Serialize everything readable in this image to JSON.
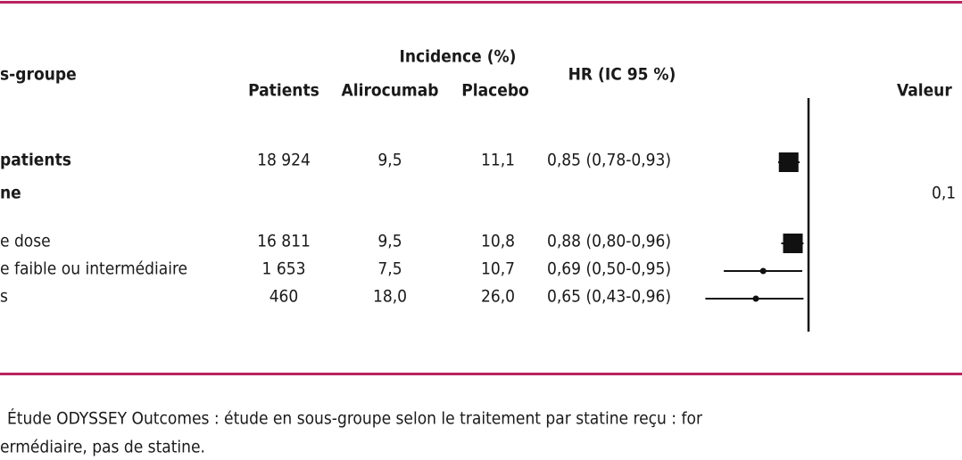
{
  "header": {
    "subgroup": "s-groupe",
    "incidence": "Incidence (%)",
    "patients": "Patients",
    "alirocumab": "Alirocumab",
    "placebo": "Placebo",
    "hr": "HR (IC 95 %)",
    "pvalue": "Valeur"
  },
  "rows": [
    {
      "label": "patients",
      "bold": true,
      "patients": "18 924",
      "alirocumab": "9,5",
      "placebo": "11,1",
      "hr_text": "0,85 (0,78-0,93)",
      "hr": 0.85,
      "low": 0.78,
      "high": 0.93,
      "marker": "square"
    },
    {
      "label": "ne",
      "bold": true,
      "pvalue": "0,1"
    },
    {
      "label": "e dose",
      "bold": false,
      "patients": "16 811",
      "alirocumab": "9,5",
      "placebo": "10,8",
      "hr_text": "0,88 (0,80-0,96)",
      "hr": 0.88,
      "low": 0.8,
      "high": 0.96,
      "marker": "square"
    },
    {
      "label": "e faible ou intermédiaire",
      "bold": false,
      "patients": "1 653",
      "alirocumab": "7,5",
      "placebo": "10,7",
      "hr_text": "0,69 (0,50-0,95)",
      "hr": 0.69,
      "low": 0.5,
      "high": 0.95,
      "marker": "dot"
    },
    {
      "label": "s",
      "bold": false,
      "patients": "460",
      "alirocumab": "18,0",
      "placebo": "26,0",
      "hr_text": "0,65 (0,43-0,96)",
      "hr": 0.65,
      "low": 0.43,
      "high": 0.96,
      "marker": "dot"
    }
  ],
  "forest": {
    "log_scale": true,
    "reference": 1,
    "xlim": [
      0.4,
      1.05
    ]
  },
  "caption": [
    "Étude ODYSSEY Outcomes : étude en sous-groupe selon le traitement par statine reçu : for",
    "ermédiaire, pas de statine."
  ]
}
